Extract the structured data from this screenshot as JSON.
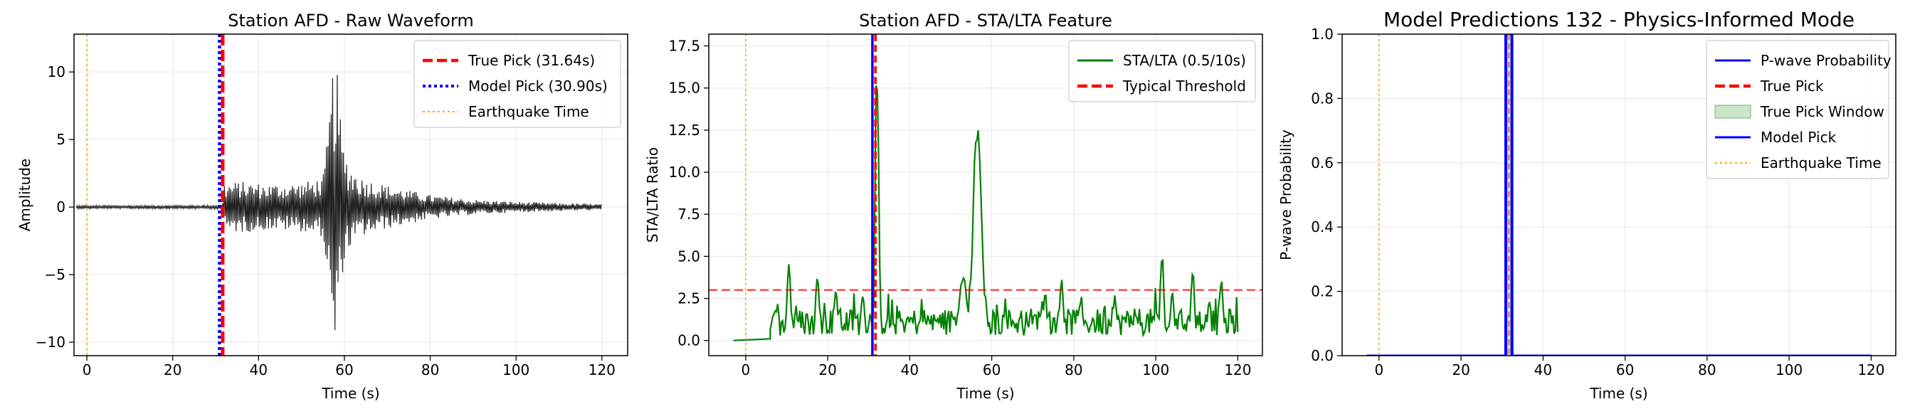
{
  "chart_data": [
    {
      "type": "line",
      "title": "Station AFD - Raw Waveform",
      "xlabel": "Time (s)",
      "ylabel": "Amplitude",
      "xlim": [
        -3,
        126
      ],
      "ylim": [
        -11,
        12.8
      ],
      "xticks": [
        0,
        20,
        40,
        60,
        80,
        100,
        120
      ],
      "yticks": [
        -10,
        -5,
        0,
        5,
        10
      ],
      "ytick_labels": [
        "−10",
        "−5",
        "0",
        "5",
        "10"
      ],
      "grid": true,
      "legend_position": "top-right",
      "legend": [
        {
          "label": "True Pick (31.64s)",
          "color": "#ff0000",
          "style": "dashed"
        },
        {
          "label": "Model Pick (30.90s)",
          "color": "#0000ff",
          "style": "dotted"
        },
        {
          "label": "Earthquake Time",
          "color": "#ffa500",
          "style": "dotted"
        }
      ],
      "true_pick": 31.64,
      "model_pick": 30.9,
      "earthquake_time": 0,
      "waveform": {
        "name": "Raw Waveform",
        "color": "#222222",
        "x_start": -2.5,
        "x_end": 120,
        "envelope_points": [
          [
            -2.5,
            0.12
          ],
          [
            10,
            0.12
          ],
          [
            30,
            0.14
          ],
          [
            31.6,
            0.2
          ],
          [
            32,
            1.8
          ],
          [
            36,
            1.9
          ],
          [
            42,
            1.7
          ],
          [
            50,
            1.8
          ],
          [
            55,
            2.2
          ],
          [
            56,
            5
          ],
          [
            57.2,
            10
          ],
          [
            57.8,
            11.6
          ],
          [
            58.3,
            10
          ],
          [
            59.5,
            5
          ],
          [
            61,
            3.2
          ],
          [
            64,
            2.2
          ],
          [
            70,
            1.6
          ],
          [
            80,
            0.9
          ],
          [
            90,
            0.55
          ],
          [
            100,
            0.4
          ],
          [
            110,
            0.3
          ],
          [
            120,
            0.22
          ]
        ]
      }
    },
    {
      "type": "line",
      "title": "Station AFD - STA/LTA Feature",
      "xlabel": "Time (s)",
      "ylabel": "STA/LTA Ratio",
      "xlim": [
        -9,
        126
      ],
      "ylim": [
        -0.9,
        18.2
      ],
      "xticks": [
        0,
        20,
        40,
        60,
        80,
        100,
        120
      ],
      "yticks": [
        0.0,
        2.5,
        5.0,
        7.5,
        10.0,
        12.5,
        15.0,
        17.5
      ],
      "ytick_labels": [
        "0.0",
        "2.5",
        "5.0",
        "7.5",
        "10.0",
        "12.5",
        "15.0",
        "17.5"
      ],
      "grid": true,
      "legend_position": "top-right",
      "legend": [
        {
          "label": "STA/LTA (0.5/10s)",
          "color": "#008000",
          "style": "solid"
        },
        {
          "label": "Typical Threshold",
          "color": "#ff0000",
          "style": "dashed"
        }
      ],
      "threshold": 3.0,
      "true_pick": 31.64,
      "model_pick": 30.9,
      "earthquake_time": 0,
      "peaks": [
        [
          10.5,
          5.1
        ],
        [
          17.5,
          4.4
        ],
        [
          22,
          3.2
        ],
        [
          28.5,
          3.0
        ],
        [
          32,
          17.2
        ],
        [
          53,
          4.0
        ],
        [
          56.5,
          13.9
        ],
        [
          73,
          3.2
        ],
        [
          77,
          4.1
        ],
        [
          90,
          2.8
        ],
        [
          101.5,
          5.4
        ],
        [
          104,
          3.0
        ],
        [
          109,
          4.4
        ],
        [
          113,
          2.4
        ],
        [
          116,
          3.6
        ]
      ]
    },
    {
      "type": "line",
      "title": "Model Predictions 132 - Physics-Informed Mode",
      "xlabel": "Time (s)",
      "ylabel": "P-wave Probability",
      "xlim": [
        -9,
        126
      ],
      "ylim": [
        0.0,
        1.0
      ],
      "xticks": [
        0,
        20,
        40,
        60,
        80,
        100,
        120
      ],
      "yticks": [
        0.0,
        0.2,
        0.4,
        0.6,
        0.8,
        1.0
      ],
      "ytick_labels": [
        "0.0",
        "0.2",
        "0.4",
        "0.6",
        "0.8",
        "1.0"
      ],
      "grid": true,
      "legend_position": "top-right",
      "legend": [
        {
          "label": "P-wave Probability",
          "color": "#0000ff",
          "style": "solid"
        },
        {
          "label": "True Pick",
          "color": "#ff0000",
          "style": "dashed"
        },
        {
          "label": "True Pick Window",
          "color": "#a9d6a9",
          "style": "patch"
        },
        {
          "label": "Model Pick",
          "color": "#0000ff",
          "style": "solid"
        },
        {
          "label": "Earthquake Time",
          "color": "#ffa500",
          "style": "dotted"
        }
      ],
      "true_pick": 31.64,
      "model_pick": 30.9,
      "earthquake_time": 0,
      "true_pick_window": [
        30.9,
        32.4
      ],
      "probability": [
        [
          -3,
          0.0
        ],
        [
          30.8,
          0.0
        ],
        [
          30.9,
          1.0
        ],
        [
          32.4,
          1.0
        ],
        [
          32.5,
          0.0
        ],
        [
          120,
          0.0
        ]
      ]
    }
  ]
}
